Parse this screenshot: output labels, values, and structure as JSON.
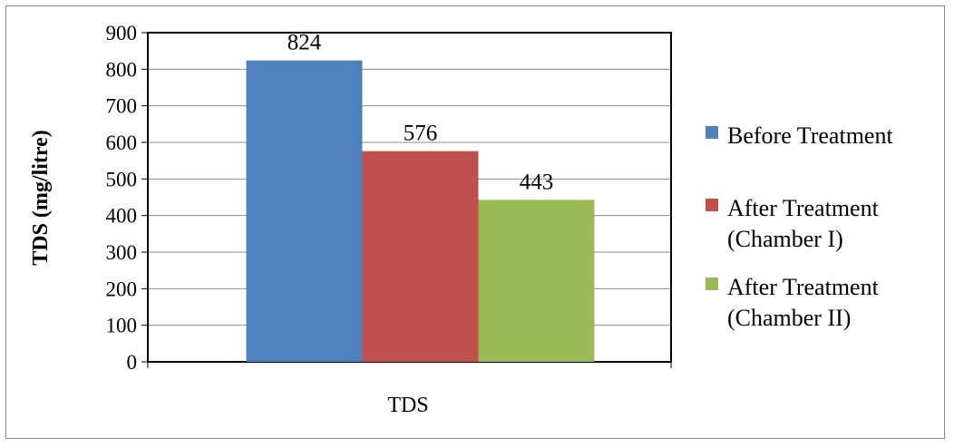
{
  "chart_data": {
    "type": "bar",
    "title": "",
    "xlabel": "",
    "ylabel": "TDS (mg/litre)",
    "categories": [
      "TDS"
    ],
    "ylim": [
      0,
      900
    ],
    "yticks": [
      0,
      100,
      200,
      300,
      400,
      500,
      600,
      700,
      800,
      900
    ],
    "grid": true,
    "legend_position": "right",
    "series": [
      {
        "name": "Before Treatment",
        "legend_lines": [
          "Before Treatment"
        ],
        "values": [
          824
        ],
        "color": "#4f81bd"
      },
      {
        "name": "After Treatment (Chamber I)",
        "legend_lines": [
          "After Treatment",
          "(Chamber I)"
        ],
        "values": [
          576
        ],
        "color": "#c0504d"
      },
      {
        "name": "After Treatment (Chamber II)",
        "legend_lines": [
          "After Treatment",
          "(Chamber II)"
        ],
        "values": [
          443
        ],
        "color": "#9bbb59"
      }
    ]
  }
}
